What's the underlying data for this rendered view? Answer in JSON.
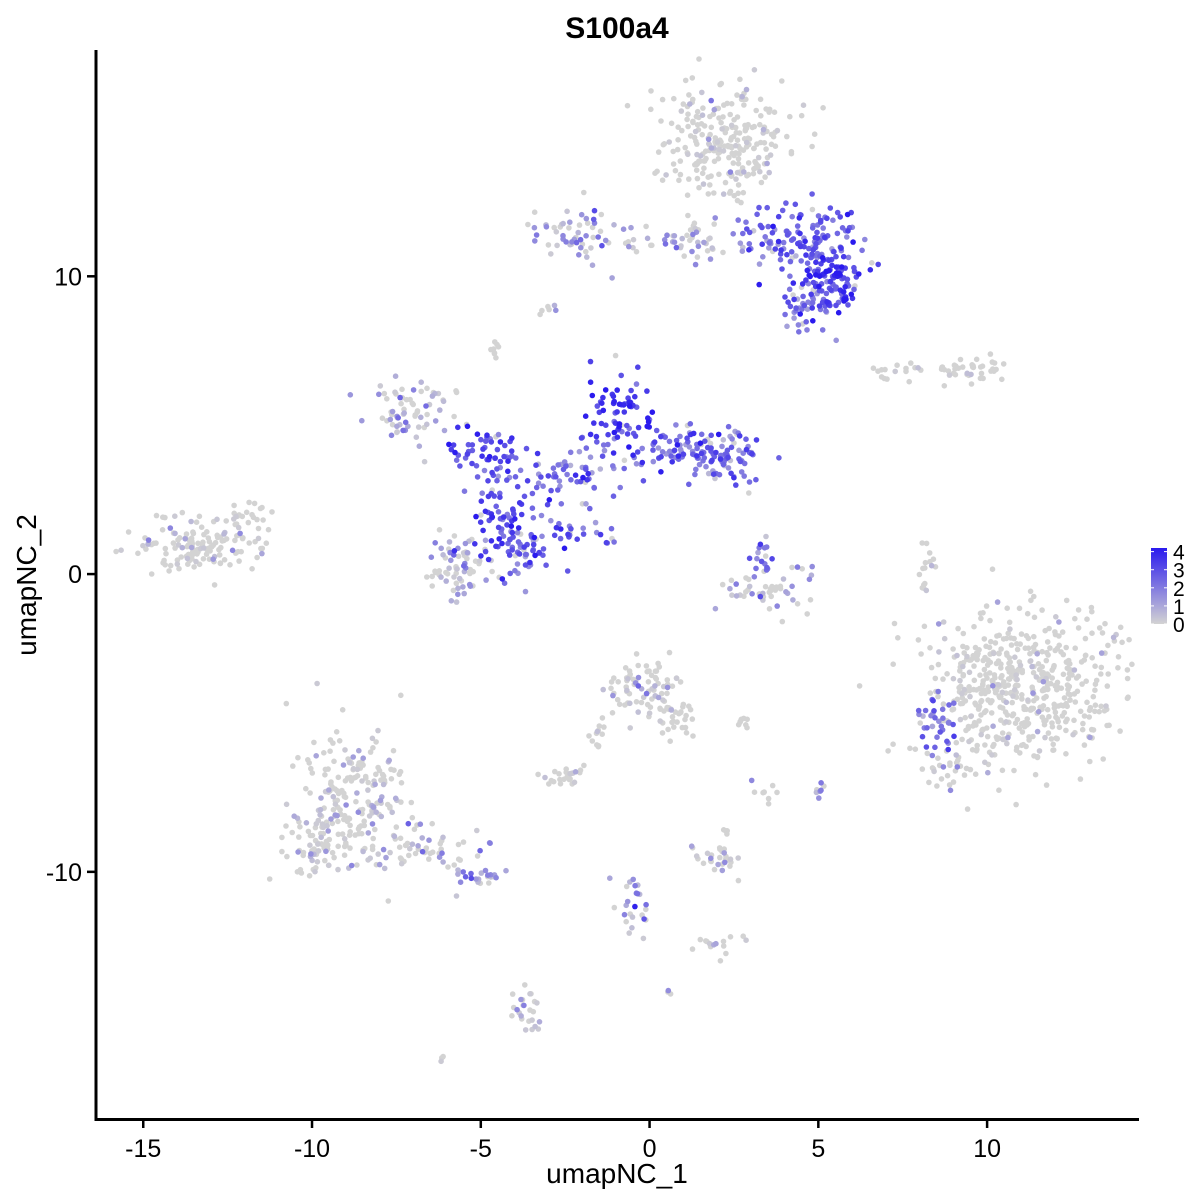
{
  "chart_data": {
    "type": "scatter",
    "title": "S100a4",
    "xlabel": "umapNC_1",
    "ylabel": "umapNC_2",
    "xlim": [
      -16.4,
      14.5
    ],
    "ylim": [
      -18.3,
      17.6
    ],
    "x_ticks": [
      -15,
      -10,
      -5,
      0,
      5,
      10
    ],
    "y_ticks": [
      -10,
      0,
      10
    ],
    "x_tick_labels": [
      "-15",
      "-10",
      "-5",
      "0",
      "5",
      "10"
    ],
    "y_tick_labels": [
      "-10",
      "0",
      "10"
    ],
    "grid": false,
    "legend_position": "right",
    "color_scale": {
      "low": "#d3d3d3",
      "high": "#2a1aee",
      "min": 0,
      "max": 4.2,
      "ticks": [
        0,
        1,
        2,
        3,
        4
      ],
      "tick_labels": [
        "0",
        "1",
        "2",
        "3",
        "4"
      ]
    },
    "clusters": [
      {
        "x": 2.2,
        "y": 14.5,
        "sx": 1.0,
        "sy": 0.9,
        "n": 260,
        "expr": 0.15
      },
      {
        "x": 4.5,
        "y": 11.2,
        "sx": 0.9,
        "sy": 0.6,
        "n": 150,
        "expr": 2.6
      },
      {
        "x": 5.5,
        "y": 9.7,
        "sx": 0.5,
        "sy": 0.45,
        "n": 90,
        "expr": 3.4
      },
      {
        "x": 4.6,
        "y": 9.0,
        "sx": 0.4,
        "sy": 0.5,
        "n": 40,
        "expr": 2.0
      },
      {
        "x": 0.8,
        "y": 11.3,
        "sx": 1.1,
        "sy": 0.4,
        "n": 60,
        "expr": 1.0
      },
      {
        "x": -2.3,
        "y": 11.4,
        "sx": 0.7,
        "sy": 0.5,
        "n": 50,
        "expr": 1.4
      },
      {
        "x": -3.0,
        "y": 8.8,
        "sx": 0.12,
        "sy": 0.1,
        "n": 6,
        "expr": 0.6
      },
      {
        "x": -4.6,
        "y": 7.5,
        "sx": 0.15,
        "sy": 0.15,
        "n": 8,
        "expr": 0.3
      },
      {
        "x": -7.0,
        "y": 5.5,
        "sx": 0.6,
        "sy": 0.55,
        "n": 70,
        "expr": 1.2
      },
      {
        "x": -4.7,
        "y": 4.0,
        "sx": 0.6,
        "sy": 0.45,
        "n": 60,
        "expr": 3.0
      },
      {
        "x": -4.5,
        "y": 1.8,
        "sx": 0.4,
        "sy": 0.8,
        "n": 60,
        "expr": 3.0
      },
      {
        "x": -3.6,
        "y": 1.0,
        "sx": 0.5,
        "sy": 0.6,
        "n": 60,
        "expr": 2.6
      },
      {
        "x": -5.6,
        "y": 0.2,
        "sx": 0.5,
        "sy": 0.55,
        "n": 70,
        "expr": 1.2
      },
      {
        "x": -2.3,
        "y": 3.4,
        "sx": 0.9,
        "sy": 0.5,
        "n": 60,
        "expr": 2.3
      },
      {
        "x": -0.9,
        "y": 5.4,
        "sx": 0.5,
        "sy": 0.7,
        "n": 70,
        "expr": 3.4
      },
      {
        "x": 0.7,
        "y": 4.2,
        "sx": 0.9,
        "sy": 0.4,
        "n": 60,
        "expr": 2.5
      },
      {
        "x": 2.2,
        "y": 4.0,
        "sx": 0.6,
        "sy": 0.5,
        "n": 90,
        "expr": 2.4
      },
      {
        "x": -2.1,
        "y": 1.3,
        "sx": 0.6,
        "sy": 0.2,
        "n": 20,
        "expr": 2.8
      },
      {
        "x": -13.4,
        "y": 1.0,
        "sx": 0.9,
        "sy": 0.45,
        "n": 130,
        "expr": 0.3
      },
      {
        "x": -12.0,
        "y": 1.9,
        "sx": 0.4,
        "sy": 0.35,
        "n": 25,
        "expr": 0.3
      },
      {
        "x": 3.4,
        "y": 0.5,
        "sx": 0.25,
        "sy": 0.35,
        "n": 15,
        "expr": 2.2
      },
      {
        "x": 3.5,
        "y": -0.5,
        "sx": 0.7,
        "sy": 0.4,
        "n": 50,
        "expr": 0.8
      },
      {
        "x": 9.4,
        "y": 6.9,
        "sx": 0.6,
        "sy": 0.25,
        "n": 40,
        "expr": 0.2
      },
      {
        "x": 7.5,
        "y": 6.8,
        "sx": 0.5,
        "sy": 0.15,
        "n": 15,
        "expr": 0.2
      },
      {
        "x": 8.2,
        "y": 0.3,
        "sx": 0.15,
        "sy": 0.55,
        "n": 15,
        "expr": 0.6
      },
      {
        "x": 11.0,
        "y": -3.8,
        "sx": 1.4,
        "sy": 1.4,
        "n": 560,
        "expr": 0.12
      },
      {
        "x": 8.5,
        "y": -5.0,
        "sx": 0.35,
        "sy": 0.6,
        "n": 35,
        "expr": 2.4
      },
      {
        "x": 9.0,
        "y": -6.5,
        "sx": 0.6,
        "sy": 0.3,
        "n": 25,
        "expr": 0.6
      },
      {
        "x": -0.2,
        "y": -3.9,
        "sx": 0.55,
        "sy": 0.5,
        "n": 80,
        "expr": 0.6
      },
      {
        "x": 0.9,
        "y": -4.9,
        "sx": 0.35,
        "sy": 0.4,
        "n": 30,
        "expr": 0.3
      },
      {
        "x": -1.5,
        "y": -5.4,
        "sx": 0.2,
        "sy": 0.3,
        "n": 12,
        "expr": 0.2
      },
      {
        "x": -2.6,
        "y": -6.8,
        "sx": 0.4,
        "sy": 0.2,
        "n": 25,
        "expr": 0.3
      },
      {
        "x": 2.7,
        "y": -5.0,
        "sx": 0.3,
        "sy": 0.12,
        "n": 8,
        "expr": 0.3
      },
      {
        "x": 3.4,
        "y": -7.3,
        "sx": 0.2,
        "sy": 0.3,
        "n": 8,
        "expr": 0.3
      },
      {
        "x": 5.0,
        "y": -7.3,
        "sx": 0.1,
        "sy": 0.25,
        "n": 8,
        "expr": 1.0
      },
      {
        "x": -8.7,
        "y": -7.5,
        "sx": 0.8,
        "sy": 1.1,
        "n": 200,
        "expr": 0.5
      },
      {
        "x": -10.0,
        "y": -9.2,
        "sx": 0.5,
        "sy": 0.5,
        "n": 60,
        "expr": 0.35
      },
      {
        "x": -7.0,
        "y": -9.2,
        "sx": 1.0,
        "sy": 0.45,
        "n": 60,
        "expr": 0.8
      },
      {
        "x": -5.2,
        "y": -10.2,
        "sx": 0.45,
        "sy": 0.2,
        "n": 25,
        "expr": 1.6
      },
      {
        "x": 2.1,
        "y": -9.6,
        "sx": 0.4,
        "sy": 0.25,
        "n": 30,
        "expr": 0.4
      },
      {
        "x": -0.4,
        "y": -11.1,
        "sx": 0.3,
        "sy": 0.6,
        "n": 25,
        "expr": 1.6
      },
      {
        "x": 2.1,
        "y": -12.4,
        "sx": 0.4,
        "sy": 0.2,
        "n": 15,
        "expr": 0.3
      },
      {
        "x": 2.3,
        "y": -8.6,
        "sx": 0.1,
        "sy": 0.15,
        "n": 4,
        "expr": 0.3
      },
      {
        "x": -3.6,
        "y": -14.6,
        "sx": 0.25,
        "sy": 0.6,
        "n": 25,
        "expr": 0.8
      },
      {
        "x": 0.6,
        "y": -14.1,
        "sx": 0.05,
        "sy": 0.05,
        "n": 3,
        "expr": 0.3
      },
      {
        "x": -6.1,
        "y": -16.3,
        "sx": 0.06,
        "sy": 0.06,
        "n": 3,
        "expr": 0.2
      }
    ]
  }
}
